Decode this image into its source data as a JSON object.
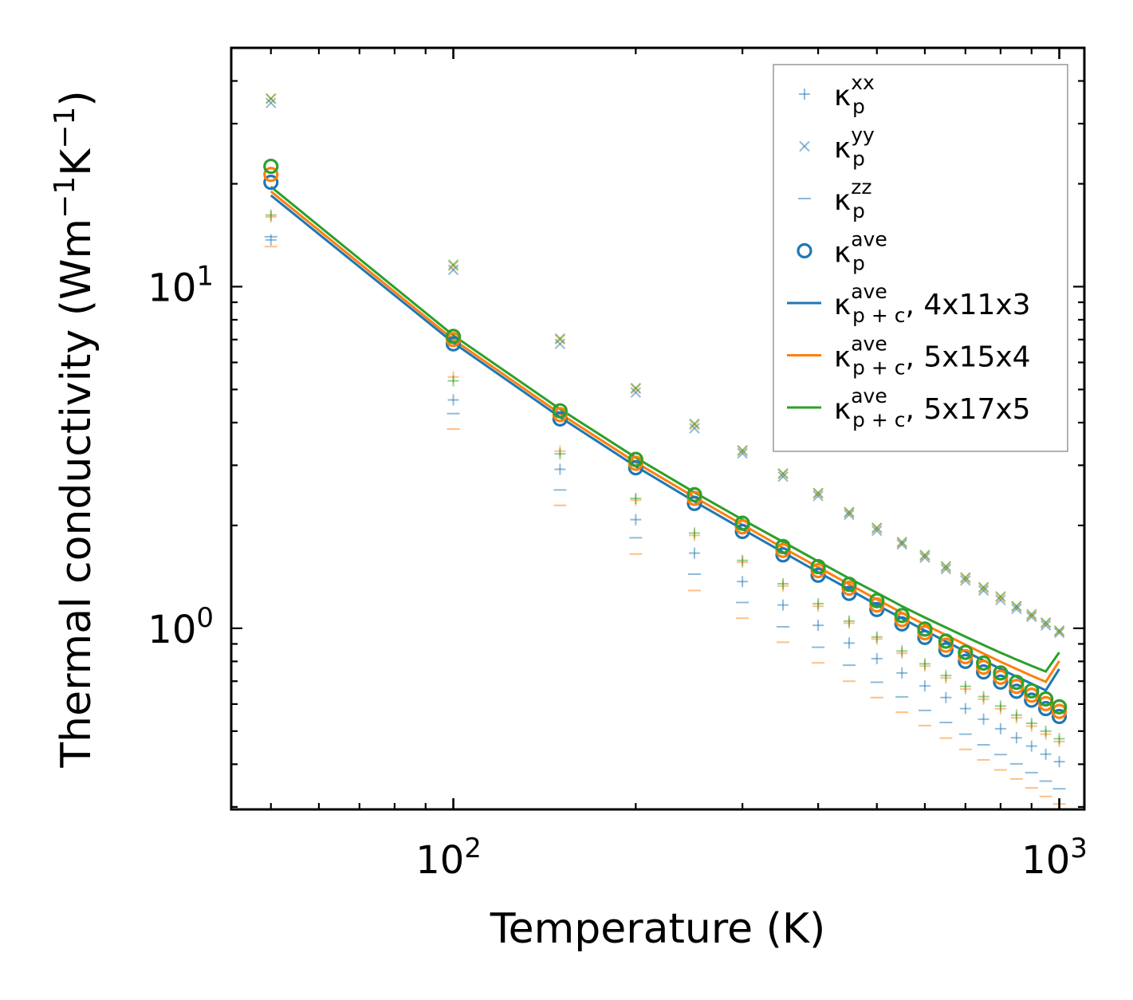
{
  "chart_data": {
    "type": "scatter",
    "title": "",
    "xlabel": "Temperature (K)",
    "ylabel_parts": [
      "Thermal conductivity (Wm",
      "−1",
      "K",
      "−1",
      ")"
    ],
    "xscale": "log",
    "yscale": "log",
    "xlim": [
      43,
      1100
    ],
    "ylim": [
      0.295,
      50
    ],
    "x_major_ticks": [
      {
        "value": 100,
        "base": "10",
        "exp": "2"
      },
      {
        "value": 1000,
        "base": "10",
        "exp": "3"
      }
    ],
    "y_major_ticks": [
      {
        "value": 1,
        "base": "10",
        "exp": "0"
      },
      {
        "value": 10,
        "base": "10",
        "exp": "1"
      }
    ],
    "legend_position": "top-right",
    "x": [
      50,
      100,
      150,
      200,
      250,
      300,
      350,
      400,
      450,
      500,
      550,
      600,
      650,
      700,
      750,
      800,
      850,
      900,
      950,
      1000
    ],
    "colors": {
      "c1": "#1f77b4",
      "c2": "#ff7f0e",
      "c3": "#2ca02c",
      "grid": "#000000"
    },
    "series": [
      {
        "name": "kappa_p_xx_4x11x3",
        "marker": "plus",
        "color": "#1f77b4",
        "values": [
          13.7,
          4.66,
          2.92,
          2.08,
          1.66,
          1.37,
          1.17,
          1.02,
          0.905,
          0.815,
          0.74,
          0.678,
          0.627,
          0.582,
          0.542,
          0.508,
          0.478,
          0.452,
          0.428,
          0.407
        ]
      },
      {
        "name": "kappa_p_xx_5x15x4",
        "marker": "plus",
        "color": "#ff7f0e",
        "values": [
          16.0,
          5.44,
          3.3,
          2.37,
          1.87,
          1.56,
          1.33,
          1.16,
          1.035,
          0.93,
          0.845,
          0.775,
          0.715,
          0.664,
          0.62,
          0.581,
          0.547,
          0.517,
          0.49,
          0.466
        ]
      },
      {
        "name": "kappa_p_xx_5x17x5",
        "marker": "plus",
        "color": "#2ca02c",
        "values": [
          16.2,
          5.3,
          3.24,
          2.4,
          1.9,
          1.58,
          1.35,
          1.18,
          1.05,
          0.943,
          0.858,
          0.787,
          0.727,
          0.676,
          0.631,
          0.592,
          0.557,
          0.527,
          0.5,
          0.475
        ]
      },
      {
        "name": "kappa_p_yy_4x11x3",
        "marker": "x",
        "color": "#1f77b4",
        "values": [
          34.5,
          11.2,
          6.8,
          4.9,
          3.85,
          3.25,
          2.78,
          2.44,
          2.15,
          1.93,
          1.76,
          1.61,
          1.49,
          1.38,
          1.29,
          1.21,
          1.14,
          1.08,
          1.02,
          0.97
        ]
      },
      {
        "name": "kappa_p_yy_5x15x4",
        "marker": "x",
        "color": "#ff7f0e",
        "values": [
          35.5,
          11.5,
          7.0,
          5.02,
          3.94,
          3.3,
          2.83,
          2.48,
          2.18,
          1.96,
          1.78,
          1.63,
          1.51,
          1.4,
          1.31,
          1.23,
          1.16,
          1.09,
          1.035,
          0.98
        ]
      },
      {
        "name": "kappa_p_yy_5x17x5",
        "marker": "x",
        "color": "#2ca02c",
        "values": [
          35.5,
          11.6,
          7.05,
          5.05,
          3.97,
          3.32,
          2.84,
          2.49,
          2.19,
          1.97,
          1.79,
          1.64,
          1.52,
          1.41,
          1.32,
          1.24,
          1.16,
          1.1,
          1.04,
          0.985
        ]
      },
      {
        "name": "kappa_p_zz_4x11x3",
        "marker": "hline",
        "color": "#1f77b4",
        "values": [
          14.0,
          4.25,
          2.54,
          1.84,
          1.44,
          1.19,
          1.01,
          0.88,
          0.78,
          0.695,
          0.63,
          0.575,
          0.53,
          0.49,
          0.456,
          0.427,
          0.401,
          0.378,
          0.357,
          0.339
        ]
      },
      {
        "name": "kappa_p_zz_5x15x4",
        "marker": "hline",
        "color": "#ff7f0e",
        "values": [
          13.1,
          3.83,
          2.29,
          1.65,
          1.29,
          1.07,
          0.91,
          0.792,
          0.7,
          0.627,
          0.568,
          0.519,
          0.477,
          0.442,
          0.412,
          0.385,
          0.362,
          0.341,
          0.322,
          0.306
        ]
      },
      {
        "name": "kappa_p_ave_4x11x3",
        "marker": "circle",
        "color": "#1f77b4",
        "values": [
          20.2,
          6.8,
          4.1,
          2.95,
          2.32,
          1.92,
          1.64,
          1.43,
          1.265,
          1.135,
          1.03,
          0.94,
          0.865,
          0.8,
          0.745,
          0.696,
          0.654,
          0.616,
          0.582,
          0.552
        ]
      },
      {
        "name": "kappa_p_ave_5x15x4",
        "marker": "circle",
        "color": "#ff7f0e",
        "values": [
          21.3,
          7.0,
          4.22,
          3.04,
          2.4,
          1.98,
          1.69,
          1.475,
          1.31,
          1.17,
          1.06,
          0.97,
          0.892,
          0.826,
          0.769,
          0.719,
          0.676,
          0.637,
          0.602,
          0.571
        ]
      },
      {
        "name": "kappa_p_ave_5x17x5",
        "marker": "circle",
        "color": "#2ca02c",
        "values": [
          22.5,
          7.15,
          4.33,
          3.12,
          2.46,
          2.03,
          1.735,
          1.515,
          1.345,
          1.205,
          1.09,
          0.995,
          0.917,
          0.85,
          0.791,
          0.74,
          0.695,
          0.656,
          0.621,
          0.589
        ]
      },
      {
        "name": "kappa_pc_ave_4x11x3",
        "marker": "line",
        "color": "#1f77b4",
        "values": [
          18.5,
          6.85,
          4.15,
          2.98,
          2.35,
          1.95,
          1.67,
          1.46,
          1.3,
          1.17,
          1.07,
          0.985,
          0.915,
          0.855,
          0.805,
          0.76,
          0.722,
          0.688,
          0.658,
          0.76
        ]
      },
      {
        "name": "kappa_pc_ave_5x15x4",
        "marker": "line",
        "color": "#ff7f0e",
        "values": [
          19.0,
          7.0,
          4.25,
          3.06,
          2.42,
          2.01,
          1.72,
          1.51,
          1.345,
          1.215,
          1.11,
          1.025,
          0.955,
          0.895,
          0.843,
          0.798,
          0.76,
          0.726,
          0.697,
          0.802
        ]
      },
      {
        "name": "kappa_pc_ave_5x17x5",
        "marker": "line",
        "color": "#2ca02c",
        "values": [
          19.6,
          7.2,
          4.38,
          3.16,
          2.5,
          2.08,
          1.79,
          1.57,
          1.4,
          1.27,
          1.16,
          1.075,
          1.005,
          0.945,
          0.893,
          0.848,
          0.81,
          0.776,
          0.747,
          0.85
        ]
      }
    ],
    "legend": [
      {
        "marker": "plus",
        "color": "#1f77b4",
        "sym": "κ",
        "sup": "xx",
        "sub": "p",
        "suffix": ""
      },
      {
        "marker": "x",
        "color": "#1f77b4",
        "sym": "κ",
        "sup": "yy",
        "sub": "p",
        "suffix": ""
      },
      {
        "marker": "hline",
        "color": "#1f77b4",
        "sym": "κ",
        "sup": "zz",
        "sub": "p",
        "suffix": ""
      },
      {
        "marker": "circle",
        "color": "#1f77b4",
        "sym": "κ",
        "sup": "ave",
        "sub": "p",
        "suffix": ""
      },
      {
        "marker": "line",
        "color": "#1f77b4",
        "sym": "κ",
        "sup": "ave",
        "sub": "p + c",
        "suffix": ", 4x11x3"
      },
      {
        "marker": "line",
        "color": "#ff7f0e",
        "sym": "κ",
        "sup": "ave",
        "sub": "p + c",
        "suffix": ", 5x15x4"
      },
      {
        "marker": "line",
        "color": "#2ca02c",
        "sym": "κ",
        "sup": "ave",
        "sub": "p + c",
        "suffix": ", 5x17x5"
      }
    ]
  }
}
